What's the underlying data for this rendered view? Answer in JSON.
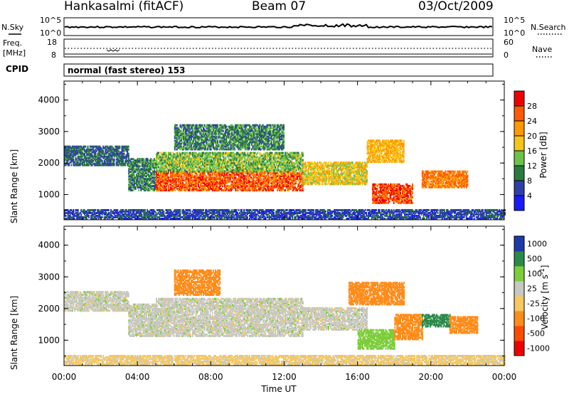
{
  "header": {
    "title": "Hankasalmi (fitACF)",
    "beam": "Beam 07",
    "date": "03/Oct/2009"
  },
  "noise_panel": {
    "left_label": "N.Sky",
    "right_label": "N.Search",
    "left_ticks": [
      "10^5",
      "10^0"
    ],
    "right_ticks": [
      "10^5",
      "10^0"
    ]
  },
  "freq_panel": {
    "left_label_line1": "Freq.",
    "left_label_line2": "[MHz]",
    "right_label": "Nave",
    "left_ticks": [
      "18",
      "8"
    ],
    "right_ticks": [
      "60",
      "0"
    ]
  },
  "cpid": {
    "label": "CPID",
    "text": "normal (fast stereo) 153"
  },
  "colors": {
    "power_scale": [
      "#1a1aff",
      "#2e3fa8",
      "#2a7a3e",
      "#6cc24a",
      "#f5c518",
      "#ff9900",
      "#ff5a00",
      "#ee0000"
    ],
    "velocity_scale": [
      "#ee0000",
      "#ff4a00",
      "#ff8c1a",
      "#f5c860",
      "#c8c8c0",
      "#7ccd3a",
      "#2a8a4a",
      "#1f3aa8"
    ]
  },
  "chart_data": [
    {
      "type": "heatmap",
      "name": "power",
      "xlabel": "",
      "ylabel": "Slant Range [km]",
      "y_ticks": [
        1000,
        2000,
        3000,
        4000
      ],
      "ylim": [
        200,
        4600
      ],
      "x_range_hours": [
        0,
        24
      ],
      "colorbar": {
        "label": "Power [dB]",
        "ticks": [
          "4",
          "8",
          "12",
          "16",
          "20",
          "24",
          "28"
        ],
        "range": [
          0,
          32
        ]
      },
      "regions": [
        {
          "t0": 0.0,
          "t1": 3.5,
          "r0": 1900,
          "r1": 2500,
          "level": 8
        },
        {
          "t0": 3.5,
          "t1": 5.0,
          "r0": 1100,
          "r1": 2100,
          "level": 10
        },
        {
          "t0": 5.0,
          "t1": 13.0,
          "r0": 1100,
          "r1": 1700,
          "level": 26
        },
        {
          "t0": 5.0,
          "t1": 13.0,
          "r0": 1700,
          "r1": 2300,
          "level": 14
        },
        {
          "t0": 6.0,
          "t1": 12.0,
          "r0": 2400,
          "r1": 3200,
          "level": 10
        },
        {
          "t0": 13.0,
          "t1": 16.5,
          "r0": 1300,
          "r1": 2000,
          "level": 18
        },
        {
          "t0": 16.5,
          "t1": 18.5,
          "r0": 2000,
          "r1": 2700,
          "level": 20
        },
        {
          "t0": 16.8,
          "t1": 19.0,
          "r0": 700,
          "r1": 1300,
          "level": 27
        },
        {
          "t0": 19.5,
          "t1": 22.0,
          "r0": 1200,
          "r1": 1700,
          "level": 24
        },
        {
          "t0": 0.0,
          "t1": 24.0,
          "r0": 200,
          "r1": 500,
          "level": 6
        }
      ]
    },
    {
      "type": "heatmap",
      "name": "velocity",
      "xlabel": "Time UT",
      "ylabel": "Slant Range [km]",
      "y_ticks": [
        1000,
        2000,
        3000,
        4000
      ],
      "ylim": [
        200,
        4600
      ],
      "x_range_hours": [
        0,
        24
      ],
      "x_ticks": [
        "00:00",
        "04:00",
        "08:00",
        "12:00",
        "16:00",
        "20:00",
        "00:00"
      ],
      "colorbar": {
        "label": "Velocity [m s^-1]",
        "ticks": [
          "1000",
          "500",
          "100",
          "25",
          "-25",
          "-100",
          "-500",
          "-1000"
        ]
      },
      "regions": [
        {
          "t0": 0.0,
          "t1": 3.5,
          "r0": 1900,
          "r1": 2500,
          "value": 0
        },
        {
          "t0": 3.5,
          "t1": 5.0,
          "r0": 1100,
          "r1": 2100,
          "value": 0
        },
        {
          "t0": 5.0,
          "t1": 13.0,
          "r0": 1100,
          "r1": 2300,
          "value": 0
        },
        {
          "t0": 6.0,
          "t1": 8.5,
          "r0": 2400,
          "r1": 3200,
          "value": -300
        },
        {
          "t0": 13.0,
          "t1": 16.5,
          "r0": 1300,
          "r1": 2000,
          "value": 0
        },
        {
          "t0": 15.5,
          "t1": 18.5,
          "r0": 2100,
          "r1": 2800,
          "value": -200
        },
        {
          "t0": 16.0,
          "t1": 18.0,
          "r0": 700,
          "r1": 1300,
          "value": 60
        },
        {
          "t0": 18.0,
          "t1": 19.5,
          "r0": 1000,
          "r1": 1800,
          "value": -300
        },
        {
          "t0": 19.5,
          "t1": 21.0,
          "r0": 1400,
          "r1": 1800,
          "value": 300
        },
        {
          "t0": 21.0,
          "t1": 22.5,
          "r0": 1200,
          "r1": 1700,
          "value": -150
        },
        {
          "t0": 0.0,
          "t1": 24.0,
          "r0": 200,
          "r1": 500,
          "value": -40
        }
      ]
    }
  ]
}
